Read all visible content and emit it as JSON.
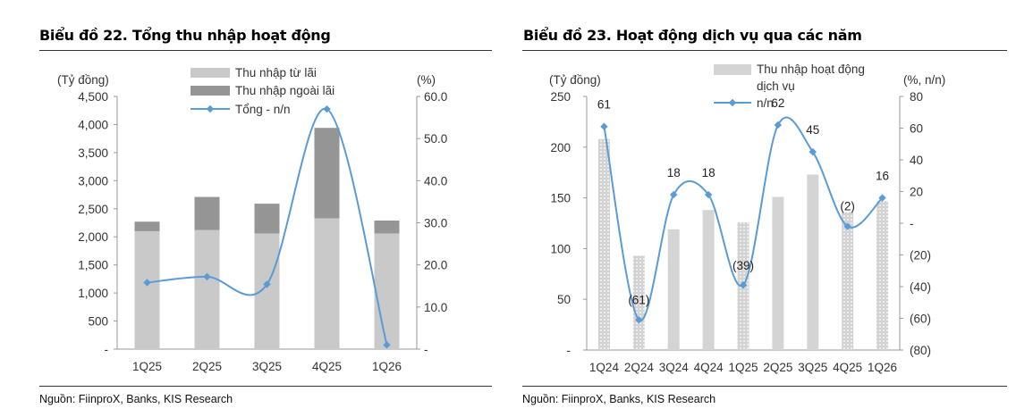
{
  "charts": [
    {
      "title": "Biểu đồ 22. Tổng thu nhập hoạt động",
      "source": "Nguồn: FiinproX, Banks, KIS Research",
      "left_axis_title": "(Tỷ đồng)",
      "right_axis_title": "(%)",
      "left_ticks": [
        "4,500",
        "4,000",
        "3,500",
        "3,000",
        "2,500",
        "2,000",
        "1,500",
        "1,000",
        "500",
        "-"
      ],
      "right_ticks": [
        "60.0",
        "50.0",
        "40.0",
        "30.0",
        "20.0",
        "10.0",
        "-"
      ],
      "legend": [
        "Thu nhập từ lãi",
        "Thu nhập ngoài lãi",
        "Tổng - n/n"
      ]
    },
    {
      "title": "Biểu đồ 23. Hoạt động dịch vụ qua các năm",
      "source": "Nguồn: FiinproX, Banks, KIS Research",
      "left_axis_title": "(Tỷ đồng)",
      "right_axis_title": "(%, n/n)",
      "left_ticks": [
        "250",
        "200",
        "150",
        "100",
        "50",
        "-"
      ],
      "right_ticks": [
        "80",
        "60",
        "40",
        "20",
        "-",
        "(20)",
        "(40)",
        "(60)",
        "(80)"
      ],
      "legend": [
        "Thu nhập hoạt động dịch vụ",
        "n/n"
      ]
    }
  ],
  "colors": {
    "interest": "#c9c9c9",
    "noninterest": "#959595",
    "line": "#5b9bd5",
    "service_bar": "#d4d4d4"
  },
  "chart_data": [
    {
      "type": "bar",
      "categories": [
        "1Q25",
        "2Q25",
        "3Q25",
        "4Q25",
        "1Q26"
      ],
      "series": [
        {
          "name": "Thu nhập từ lãi",
          "values": [
            2100,
            2120,
            2060,
            2330,
            2060
          ],
          "axis": "left",
          "stacked": true
        },
        {
          "name": "Thu nhập ngoài lãi",
          "values": [
            170,
            590,
            530,
            1610,
            230
          ],
          "axis": "left",
          "stacked": true
        },
        {
          "name": "Tổng - n/n",
          "type": "line",
          "values": [
            15.8,
            17.2,
            15.4,
            57.0,
            1.0
          ],
          "axis": "right"
        }
      ],
      "ylim_left": [
        0,
        4500
      ],
      "ylim_right": [
        0,
        60
      ],
      "title": "Biểu đồ 22. Tổng thu nhập hoạt động",
      "ylabel": "(Tỷ đồng)",
      "ylabel_right": "(%)"
    },
    {
      "type": "bar",
      "categories": [
        "1Q24",
        "2Q24",
        "3Q24",
        "4Q24",
        "1Q25",
        "2Q25",
        "3Q25",
        "4Q25",
        "1Q26"
      ],
      "series": [
        {
          "name": "Thu nhập hoạt động dịch vụ",
          "values": [
            208,
            93,
            119,
            138,
            126,
            151,
            173,
            136,
            147
          ],
          "axis": "left"
        },
        {
          "name": "n/n",
          "type": "line",
          "values": [
            61,
            -61,
            18,
            18,
            -39,
            62,
            45,
            -2,
            16
          ],
          "axis": "right"
        }
      ],
      "data_labels": [
        "61",
        "(61)",
        "18",
        "18",
        "(39)",
        "62",
        "45",
        "(2)",
        "16"
      ],
      "ylim_left": [
        0,
        250
      ],
      "ylim_right": [
        -80,
        80
      ],
      "title": "Biểu đồ 23. Hoạt động dịch vụ qua các năm",
      "ylabel": "(Tỷ đồng)",
      "ylabel_right": "(%, n/n)"
    }
  ]
}
